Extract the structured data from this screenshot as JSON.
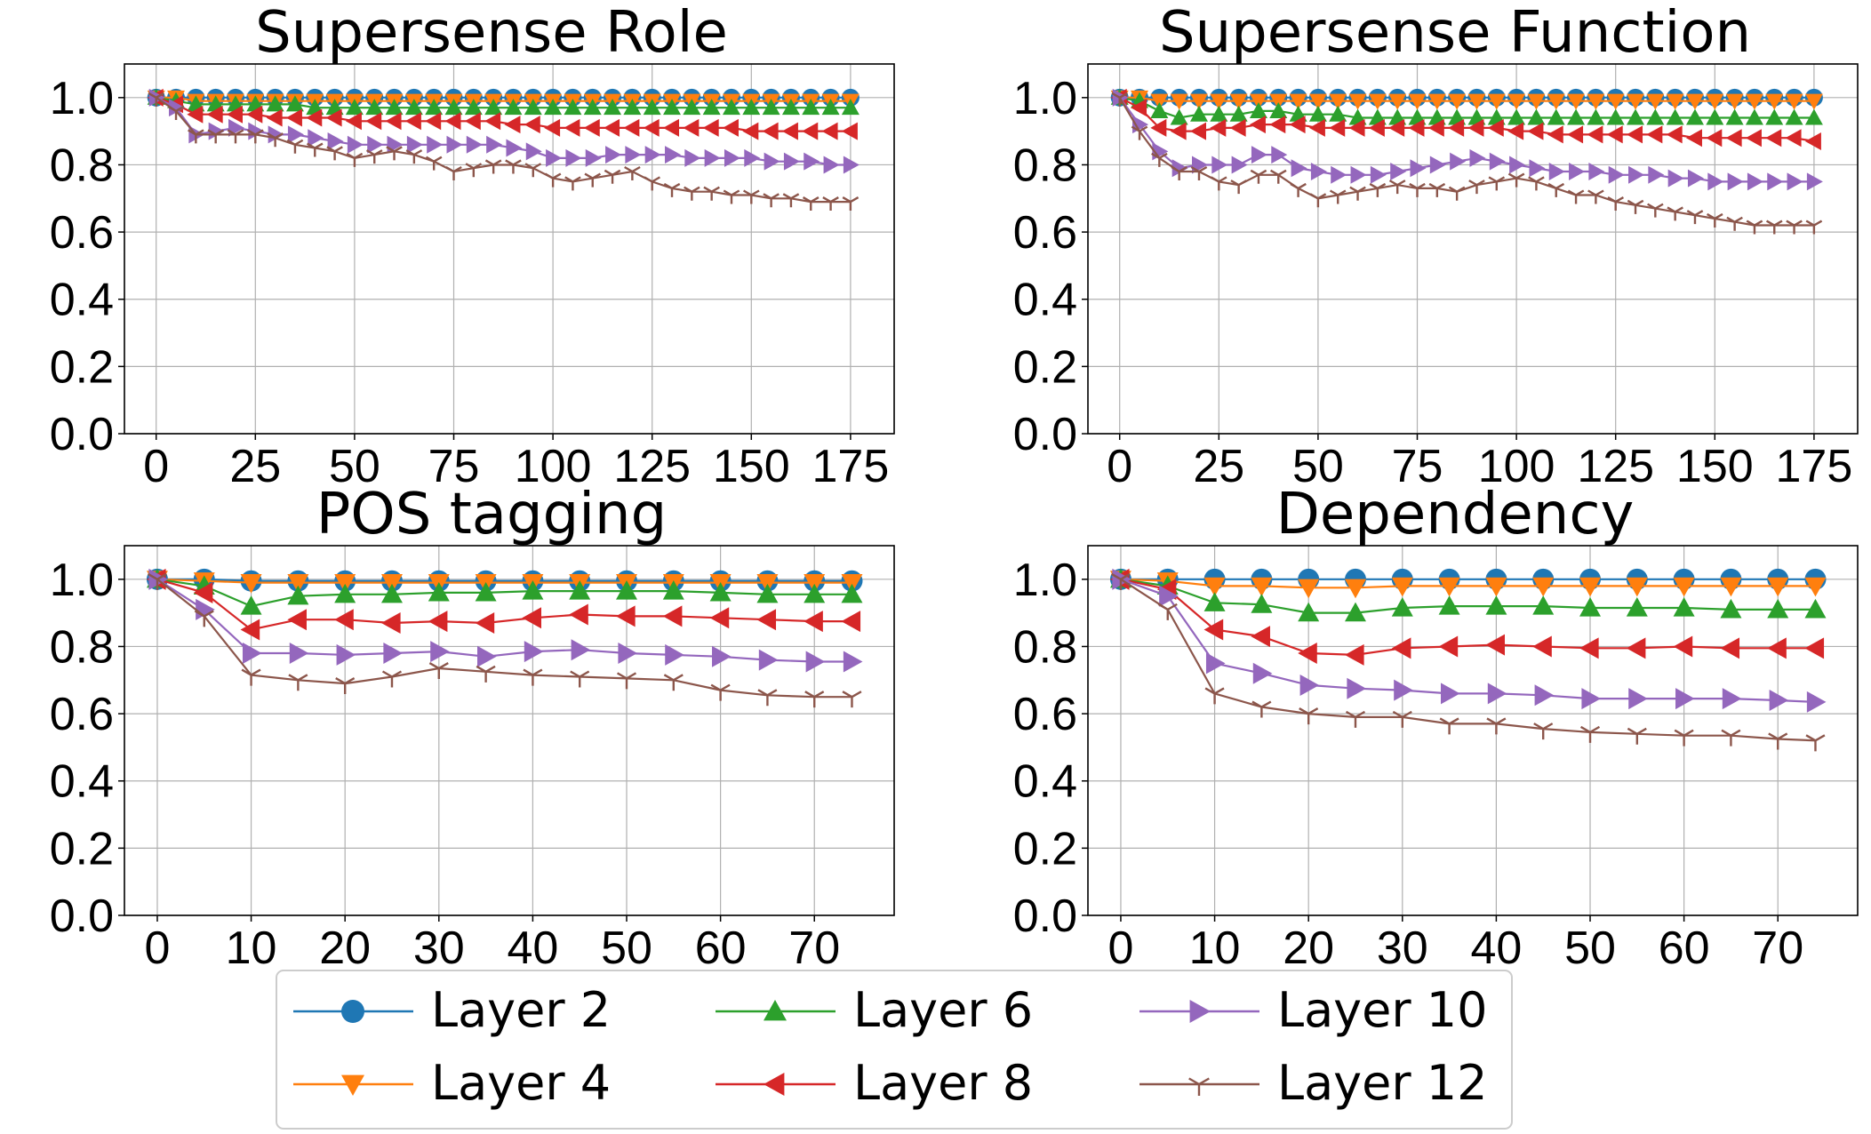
{
  "legend": [
    {
      "name": "Layer 2",
      "color": "#1f77b4",
      "marker": "circle"
    },
    {
      "name": "Layer 4",
      "color": "#ff7f0e",
      "marker": "triangle-down"
    },
    {
      "name": "Layer 6",
      "color": "#2ca02c",
      "marker": "triangle-up"
    },
    {
      "name": "Layer 8",
      "color": "#d62728",
      "marker": "triangle-left"
    },
    {
      "name": "Layer 10",
      "color": "#9467bd",
      "marker": "triangle-right"
    },
    {
      "name": "Layer 12",
      "color": "#8c564b",
      "marker": "tri-down"
    }
  ],
  "chart_data": [
    {
      "type": "line",
      "title": "Supersense Role",
      "xlabel": "",
      "ylabel": "",
      "xlim": [
        -8,
        186
      ],
      "ylim": [
        0,
        1.1
      ],
      "xticks": [
        0,
        25,
        50,
        75,
        100,
        125,
        150,
        175
      ],
      "yticks": [
        "0.0",
        "0.2",
        "0.4",
        "0.6",
        "0.8",
        "1.0"
      ],
      "x": [
        0,
        5,
        10,
        15,
        20,
        25,
        30,
        35,
        40,
        45,
        50,
        55,
        60,
        65,
        70,
        75,
        80,
        85,
        90,
        95,
        100,
        105,
        110,
        115,
        120,
        125,
        130,
        135,
        140,
        145,
        150,
        155,
        160,
        165,
        170,
        175
      ],
      "series": [
        {
          "name": "Layer 2",
          "values": [
            1.0,
            1.0,
            1.0,
            1.0,
            1.0,
            1.0,
            1.0,
            1.0,
            1.0,
            1.0,
            1.0,
            1.0,
            1.0,
            1.0,
            1.0,
            1.0,
            1.0,
            1.0,
            1.0,
            1.0,
            1.0,
            1.0,
            1.0,
            1.0,
            1.0,
            1.0,
            1.0,
            1.0,
            1.0,
            1.0,
            1.0,
            1.0,
            1.0,
            1.0,
            1.0,
            1.0
          ]
        },
        {
          "name": "Layer 4",
          "values": [
            1.0,
            1.0,
            0.99,
            0.99,
            0.99,
            0.99,
            0.99,
            0.99,
            0.99,
            0.99,
            0.99,
            0.99,
            0.99,
            0.99,
            0.99,
            0.99,
            0.99,
            0.99,
            0.99,
            0.99,
            0.99,
            0.99,
            0.99,
            0.99,
            0.99,
            0.99,
            0.99,
            0.99,
            0.99,
            0.99,
            0.99,
            0.99,
            0.99,
            0.99,
            0.99,
            0.99
          ]
        },
        {
          "name": "Layer 6",
          "values": [
            1.0,
            0.99,
            0.98,
            0.98,
            0.98,
            0.98,
            0.98,
            0.98,
            0.97,
            0.97,
            0.97,
            0.97,
            0.97,
            0.97,
            0.97,
            0.97,
            0.97,
            0.97,
            0.97,
            0.97,
            0.97,
            0.97,
            0.97,
            0.97,
            0.97,
            0.97,
            0.97,
            0.97,
            0.97,
            0.97,
            0.97,
            0.97,
            0.97,
            0.97,
            0.97,
            0.97
          ]
        },
        {
          "name": "Layer 8",
          "values": [
            1.0,
            0.98,
            0.95,
            0.95,
            0.95,
            0.95,
            0.94,
            0.94,
            0.94,
            0.94,
            0.93,
            0.93,
            0.93,
            0.93,
            0.93,
            0.93,
            0.93,
            0.93,
            0.92,
            0.92,
            0.91,
            0.91,
            0.91,
            0.91,
            0.91,
            0.91,
            0.91,
            0.91,
            0.91,
            0.91,
            0.9,
            0.9,
            0.9,
            0.9,
            0.9,
            0.9
          ]
        },
        {
          "name": "Layer 10",
          "values": [
            1.0,
            0.97,
            0.89,
            0.9,
            0.91,
            0.9,
            0.89,
            0.89,
            0.88,
            0.87,
            0.86,
            0.86,
            0.86,
            0.86,
            0.86,
            0.86,
            0.86,
            0.86,
            0.85,
            0.84,
            0.82,
            0.82,
            0.82,
            0.83,
            0.83,
            0.83,
            0.83,
            0.82,
            0.82,
            0.82,
            0.82,
            0.81,
            0.81,
            0.81,
            0.8,
            0.8
          ]
        },
        {
          "name": "Layer 12",
          "values": [
            1.0,
            0.96,
            0.89,
            0.89,
            0.89,
            0.89,
            0.88,
            0.86,
            0.85,
            0.84,
            0.82,
            0.83,
            0.84,
            0.83,
            0.81,
            0.78,
            0.79,
            0.8,
            0.8,
            0.79,
            0.76,
            0.75,
            0.76,
            0.77,
            0.78,
            0.75,
            0.73,
            0.72,
            0.72,
            0.71,
            0.71,
            0.7,
            0.7,
            0.69,
            0.69,
            0.69
          ]
        }
      ]
    },
    {
      "type": "line",
      "title": "Supersense Function",
      "xlabel": "",
      "ylabel": "",
      "xlim": [
        -8,
        186
      ],
      "ylim": [
        0,
        1.1
      ],
      "xticks": [
        0,
        25,
        50,
        75,
        100,
        125,
        150,
        175
      ],
      "yticks": [
        "0.0",
        "0.2",
        "0.4",
        "0.6",
        "0.8",
        "1.0"
      ],
      "x": [
        0,
        5,
        10,
        15,
        20,
        25,
        30,
        35,
        40,
        45,
        50,
        55,
        60,
        65,
        70,
        75,
        80,
        85,
        90,
        95,
        100,
        105,
        110,
        115,
        120,
        125,
        130,
        135,
        140,
        145,
        150,
        155,
        160,
        165,
        170,
        175
      ],
      "series": [
        {
          "name": "Layer 2",
          "values": [
            1.0,
            1.0,
            1.0,
            1.0,
            1.0,
            1.0,
            1.0,
            1.0,
            1.0,
            1.0,
            1.0,
            1.0,
            1.0,
            1.0,
            1.0,
            1.0,
            1.0,
            1.0,
            1.0,
            1.0,
            1.0,
            1.0,
            1.0,
            1.0,
            1.0,
            1.0,
            1.0,
            1.0,
            1.0,
            1.0,
            1.0,
            1.0,
            1.0,
            1.0,
            1.0,
            1.0
          ]
        },
        {
          "name": "Layer 4",
          "values": [
            1.0,
            1.0,
            0.99,
            0.99,
            0.99,
            0.99,
            0.99,
            0.99,
            0.99,
            0.99,
            0.99,
            0.99,
            0.99,
            0.99,
            0.99,
            0.99,
            0.99,
            0.99,
            0.99,
            0.99,
            0.99,
            0.99,
            0.99,
            0.99,
            0.99,
            0.99,
            0.99,
            0.99,
            0.99,
            0.99,
            0.99,
            0.99,
            0.99,
            0.99,
            0.99,
            0.99
          ]
        },
        {
          "name": "Layer 6",
          "values": [
            1.0,
            0.99,
            0.96,
            0.94,
            0.95,
            0.95,
            0.95,
            0.96,
            0.96,
            0.95,
            0.95,
            0.95,
            0.94,
            0.94,
            0.94,
            0.94,
            0.94,
            0.94,
            0.94,
            0.94,
            0.94,
            0.94,
            0.94,
            0.94,
            0.94,
            0.94,
            0.94,
            0.94,
            0.94,
            0.94,
            0.94,
            0.94,
            0.94,
            0.94,
            0.94,
            0.94
          ]
        },
        {
          "name": "Layer 8",
          "values": [
            1.0,
            0.97,
            0.91,
            0.9,
            0.9,
            0.91,
            0.91,
            0.92,
            0.92,
            0.92,
            0.91,
            0.91,
            0.91,
            0.91,
            0.91,
            0.91,
            0.91,
            0.91,
            0.91,
            0.91,
            0.9,
            0.9,
            0.89,
            0.89,
            0.89,
            0.89,
            0.89,
            0.89,
            0.89,
            0.88,
            0.88,
            0.88,
            0.88,
            0.88,
            0.88,
            0.87
          ]
        },
        {
          "name": "Layer 10",
          "values": [
            1.0,
            0.92,
            0.84,
            0.79,
            0.8,
            0.8,
            0.8,
            0.83,
            0.83,
            0.79,
            0.78,
            0.77,
            0.77,
            0.77,
            0.78,
            0.79,
            0.8,
            0.81,
            0.82,
            0.81,
            0.8,
            0.79,
            0.78,
            0.78,
            0.78,
            0.77,
            0.77,
            0.77,
            0.76,
            0.76,
            0.75,
            0.75,
            0.75,
            0.75,
            0.75,
            0.75
          ]
        },
        {
          "name": "Layer 12",
          "values": [
            1.0,
            0.9,
            0.82,
            0.78,
            0.78,
            0.75,
            0.74,
            0.77,
            0.77,
            0.73,
            0.7,
            0.71,
            0.72,
            0.73,
            0.74,
            0.73,
            0.73,
            0.72,
            0.74,
            0.75,
            0.76,
            0.75,
            0.73,
            0.71,
            0.71,
            0.69,
            0.68,
            0.67,
            0.66,
            0.65,
            0.64,
            0.63,
            0.62,
            0.62,
            0.62,
            0.62
          ]
        }
      ]
    },
    {
      "type": "line",
      "title": "POS tagging",
      "xlabel": "",
      "ylabel": "",
      "xlim": [
        -3.5,
        78.5
      ],
      "ylim": [
        0,
        1.1
      ],
      "xticks": [
        0,
        10,
        20,
        30,
        40,
        50,
        60,
        70
      ],
      "yticks": [
        "0.0",
        "0.2",
        "0.4",
        "0.6",
        "0.8",
        "1.0"
      ],
      "x": [
        0,
        5,
        10,
        15,
        20,
        25,
        30,
        35,
        40,
        45,
        50,
        55,
        60,
        65,
        70,
        74
      ],
      "series": [
        {
          "name": "Layer 2",
          "values": [
            1.0,
            1.0,
            0.995,
            0.995,
            0.995,
            0.995,
            0.995,
            0.995,
            0.995,
            0.995,
            0.995,
            0.995,
            0.995,
            0.995,
            0.995,
            0.995
          ]
        },
        {
          "name": "Layer 4",
          "values": [
            1.0,
            0.995,
            0.99,
            0.99,
            0.99,
            0.99,
            0.99,
            0.99,
            0.99,
            0.99,
            0.99,
            0.99,
            0.99,
            0.99,
            0.99,
            0.99
          ]
        },
        {
          "name": "Layer 6",
          "values": [
            1.0,
            0.98,
            0.92,
            0.95,
            0.955,
            0.955,
            0.96,
            0.96,
            0.965,
            0.965,
            0.965,
            0.965,
            0.96,
            0.955,
            0.955,
            0.955
          ]
        },
        {
          "name": "Layer 8",
          "values": [
            1.0,
            0.96,
            0.85,
            0.88,
            0.88,
            0.87,
            0.875,
            0.87,
            0.885,
            0.895,
            0.89,
            0.89,
            0.885,
            0.88,
            0.875,
            0.875
          ]
        },
        {
          "name": "Layer 10",
          "values": [
            1.0,
            0.91,
            0.78,
            0.78,
            0.775,
            0.78,
            0.785,
            0.77,
            0.785,
            0.79,
            0.78,
            0.775,
            0.77,
            0.76,
            0.755,
            0.755
          ]
        },
        {
          "name": "Layer 12",
          "values": [
            1.0,
            0.89,
            0.715,
            0.7,
            0.69,
            0.71,
            0.735,
            0.725,
            0.715,
            0.71,
            0.705,
            0.7,
            0.67,
            0.655,
            0.65,
            0.65
          ]
        }
      ]
    },
    {
      "type": "line",
      "title": "Dependency",
      "xlabel": "",
      "ylabel": "",
      "xlim": [
        -3.5,
        78.5
      ],
      "ylim": [
        0,
        1.1
      ],
      "xticks": [
        0,
        10,
        20,
        30,
        40,
        50,
        60,
        70
      ],
      "yticks": [
        "0.0",
        "0.2",
        "0.4",
        "0.6",
        "0.8",
        "1.0"
      ],
      "x": [
        0,
        5,
        10,
        15,
        20,
        25,
        30,
        35,
        40,
        45,
        50,
        55,
        60,
        65,
        70,
        74
      ],
      "series": [
        {
          "name": "Layer 2",
          "values": [
            1.0,
            1.0,
            1.0,
            1.0,
            1.0,
            1.0,
            1.0,
            1.0,
            1.0,
            1.0,
            1.0,
            1.0,
            1.0,
            1.0,
            1.0,
            1.0
          ]
        },
        {
          "name": "Layer 4",
          "values": [
            1.0,
            0.995,
            0.98,
            0.98,
            0.975,
            0.975,
            0.98,
            0.98,
            0.98,
            0.98,
            0.98,
            0.98,
            0.98,
            0.98,
            0.98,
            0.98
          ]
        },
        {
          "name": "Layer 6",
          "values": [
            1.0,
            0.98,
            0.93,
            0.925,
            0.9,
            0.9,
            0.915,
            0.92,
            0.92,
            0.92,
            0.915,
            0.915,
            0.915,
            0.91,
            0.91,
            0.91
          ]
        },
        {
          "name": "Layer 8",
          "values": [
            1.0,
            0.97,
            0.85,
            0.83,
            0.78,
            0.775,
            0.795,
            0.8,
            0.805,
            0.8,
            0.795,
            0.795,
            0.8,
            0.795,
            0.795,
            0.795
          ]
        },
        {
          "name": "Layer 10",
          "values": [
            1.0,
            0.95,
            0.75,
            0.72,
            0.685,
            0.675,
            0.67,
            0.66,
            0.66,
            0.655,
            0.645,
            0.645,
            0.645,
            0.645,
            0.64,
            0.635
          ]
        },
        {
          "name": "Layer 12",
          "values": [
            1.0,
            0.91,
            0.66,
            0.62,
            0.6,
            0.59,
            0.59,
            0.57,
            0.57,
            0.555,
            0.545,
            0.54,
            0.535,
            0.535,
            0.525,
            0.52
          ]
        }
      ]
    }
  ]
}
